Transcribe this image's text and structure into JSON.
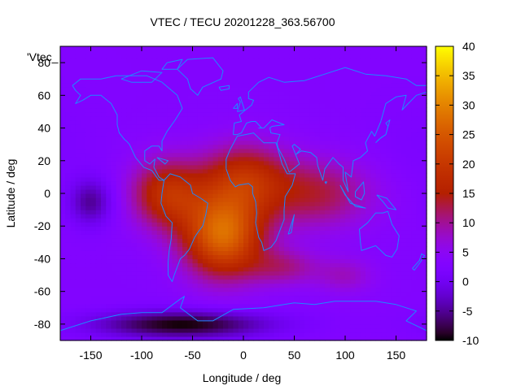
{
  "chart_data": {
    "type": "heatmap",
    "title": "VTEC / TECU 20201228_363.56700",
    "xlabel": "Longitude / deg",
    "ylabel": "Latitude / deg",
    "key_label": "'Vtec_",
    "xlim": [
      -180,
      180
    ],
    "ylim": [
      -90,
      90
    ],
    "x_ticks": [
      -150,
      -100,
      -50,
      0,
      50,
      100,
      150
    ],
    "y_ticks": [
      -80,
      -60,
      -40,
      -20,
      0,
      20,
      40,
      60,
      80
    ],
    "colorbar": {
      "range": [
        -10,
        40
      ],
      "ticks": [
        -10,
        -5,
        0,
        5,
        10,
        15,
        20,
        25,
        30,
        35,
        40
      ],
      "palette": "black-blue-purple-red-orange-yellow"
    },
    "background_value": 3,
    "features": [
      {
        "lon": -20,
        "lat": -25,
        "sigma_lon": 28,
        "sigma_lat": 18,
        "value": 27
      },
      {
        "lon": -75,
        "lat": 0,
        "sigma_lon": 25,
        "sigma_lat": 15,
        "value": 18
      },
      {
        "lon": 0,
        "lat": 10,
        "sigma_lon": 30,
        "sigma_lat": 15,
        "value": 16
      },
      {
        "lon": 70,
        "lat": 0,
        "sigma_lon": 40,
        "sigma_lat": 15,
        "value": 13
      },
      {
        "lon": 40,
        "lat": -45,
        "sigma_lon": 25,
        "sigma_lat": 8,
        "value": 10
      },
      {
        "lon": 100,
        "lat": -50,
        "sigma_lon": 20,
        "sigma_lat": 8,
        "value": 8
      },
      {
        "lon": 150,
        "lat": -20,
        "sigma_lon": 18,
        "sigma_lat": 20,
        "value": 3
      },
      {
        "lon": 170,
        "lat": 30,
        "sigma_lon": 30,
        "sigma_lat": 20,
        "value": 2
      },
      {
        "lon": -150,
        "lat": -5,
        "sigma_lon": 15,
        "sigma_lat": 10,
        "value": -5
      },
      {
        "lon": -60,
        "lat": -80,
        "sigma_lon": 60,
        "sigma_lat": 6,
        "value": -10
      },
      {
        "lon": 100,
        "lat": 65,
        "sigma_lon": 40,
        "sigma_lat": 10,
        "value": 3
      },
      {
        "lon": -130,
        "lat": 30,
        "sigma_lon": 25,
        "sigma_lat": 15,
        "value": 3
      }
    ],
    "coastline_color": "#1e88ff"
  }
}
